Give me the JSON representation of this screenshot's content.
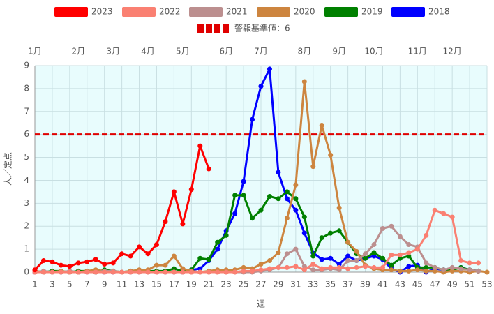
{
  "chart_data": {
    "type": "line",
    "x_label": "週",
    "y_label": "人／定点",
    "x": [
      1,
      2,
      3,
      4,
      5,
      6,
      7,
      8,
      9,
      10,
      11,
      12,
      13,
      14,
      15,
      16,
      17,
      18,
      19,
      20,
      21,
      22,
      23,
      24,
      25,
      26,
      27,
      28,
      29,
      30,
      31,
      32,
      33,
      34,
      35,
      36,
      37,
      38,
      39,
      40,
      41,
      42,
      43,
      44,
      45,
      46,
      47,
      48,
      49,
      50,
      51,
      52,
      53
    ],
    "xlim": [
      1,
      53
    ],
    "xticks": [
      1,
      3,
      5,
      7,
      9,
      11,
      13,
      15,
      17,
      19,
      21,
      23,
      25,
      27,
      29,
      31,
      33,
      35,
      37,
      39,
      41,
      43,
      45,
      47,
      49,
      51,
      53
    ],
    "month_ticks": [
      {
        "value": 1,
        "label": "1月"
      },
      {
        "value": 6,
        "label": "2月"
      },
      {
        "value": 10,
        "label": "3月"
      },
      {
        "value": 14,
        "label": "4月"
      },
      {
        "value": 18,
        "label": "5月"
      },
      {
        "value": 23,
        "label": "6月"
      },
      {
        "value": 27,
        "label": "7月"
      },
      {
        "value": 32,
        "label": "8月"
      },
      {
        "value": 36,
        "label": "9月"
      },
      {
        "value": 40,
        "label": "10月"
      },
      {
        "value": 45,
        "label": "11月"
      },
      {
        "value": 49,
        "label": "12月"
      }
    ],
    "ylim": [
      0,
      9
    ],
    "yticks": [
      0,
      1,
      2,
      3,
      4,
      5,
      6,
      7,
      8,
      9
    ],
    "grid": true,
    "legend": "top",
    "threshold": {
      "value": 6,
      "label": "警報基準値：6",
      "color": "#e00000"
    },
    "series": [
      {
        "name": "2023",
        "color": "#ff0000",
        "values": [
          0.1,
          0.5,
          0.45,
          0.3,
          0.25,
          0.4,
          0.45,
          0.55,
          0.35,
          0.4,
          0.8,
          0.7,
          1.1,
          0.8,
          1.2,
          2.2,
          3.5,
          2.1,
          3.6,
          5.5,
          4.5,
          null,
          null,
          null,
          null,
          null,
          null,
          null,
          null,
          null,
          null,
          null,
          null,
          null,
          null,
          null,
          null,
          null,
          null,
          null,
          null,
          null,
          null,
          null,
          null,
          null,
          null,
          null,
          null,
          null,
          null,
          null,
          null
        ]
      },
      {
        "name": "2022",
        "color": "#fa8072",
        "values": [
          0,
          0,
          0,
          0,
          0,
          0,
          0,
          0,
          0,
          0,
          0,
          0,
          0,
          0,
          0,
          0,
          0,
          0,
          0,
          0,
          0,
          0,
          0,
          0,
          0.05,
          0.05,
          0.1,
          0.15,
          0.2,
          0.2,
          0.25,
          0.1,
          0.35,
          0.15,
          0.2,
          0.2,
          0.15,
          0.2,
          0.25,
          0.2,
          0.2,
          0.75,
          0.75,
          0.85,
          1.0,
          1.6,
          2.7,
          2.55,
          2.4,
          0.5,
          0.4,
          0.4,
          null
        ]
      },
      {
        "name": "2021",
        "color": "#bc8f8f",
        "values": [
          0,
          0.05,
          0,
          0,
          0.05,
          0,
          0,
          0,
          0.05,
          0.05,
          0,
          0,
          0,
          0,
          0,
          0,
          0,
          0,
          0,
          0,
          0,
          0,
          0,
          0,
          0,
          0,
          0.05,
          0.1,
          0.2,
          0.8,
          1.0,
          0.25,
          0.1,
          0.1,
          0.15,
          0.1,
          0.5,
          0.5,
          0.8,
          1.2,
          1.9,
          2.0,
          1.55,
          1.2,
          1.1,
          0.4,
          0.2,
          0.1,
          0.2,
          0.15,
          0.1,
          0.05,
          null
        ]
      },
      {
        "name": "2020",
        "color": "#cd853f",
        "values": [
          0.05,
          0,
          0,
          0.05,
          0,
          0,
          0.05,
          0.1,
          0.05,
          0.05,
          0,
          0.05,
          0.1,
          0.1,
          0.3,
          0.3,
          0.7,
          0.15,
          0.05,
          0,
          0.05,
          0.1,
          0.1,
          0.1,
          0.2,
          0.15,
          0.35,
          0.5,
          0.85,
          2.35,
          3.8,
          8.3,
          4.6,
          6.4,
          5.1,
          2.8,
          1.3,
          0.9,
          0.3,
          0.15,
          0.1,
          0.1,
          0.05,
          0.05,
          0.1,
          0.05,
          0.05,
          0,
          0.05,
          0.05,
          0,
          0.05,
          0
        ]
      },
      {
        "name": "2019",
        "color": "#008000",
        "values": [
          0.05,
          0,
          0.05,
          0.05,
          0,
          0.05,
          0.05,
          0,
          0.1,
          0.05,
          0,
          0.05,
          0.05,
          0.05,
          0.05,
          0.05,
          0.15,
          0.05,
          0.1,
          0.6,
          0.55,
          1.3,
          1.6,
          3.35,
          3.35,
          2.35,
          2.7,
          3.3,
          3.2,
          3.5,
          3.2,
          2.4,
          0.7,
          1.5,
          1.7,
          1.8,
          1.3,
          0.8,
          0.6,
          0.85,
          0.6,
          0.3,
          0.6,
          0.7,
          0.2,
          0.2,
          0.2,
          0.1,
          0.1,
          0.2,
          0.1,
          0.05,
          null
        ]
      },
      {
        "name": "2018",
        "color": "#0000ff",
        "values": [
          0,
          0,
          0,
          0,
          0,
          0,
          0,
          0,
          0,
          0,
          0,
          0,
          0,
          0,
          0,
          0,
          0,
          0,
          0.1,
          0.15,
          0.5,
          1.0,
          1.8,
          2.55,
          3.95,
          6.65,
          8.1,
          8.85,
          4.35,
          3.2,
          2.7,
          1.7,
          0.85,
          0.55,
          0.6,
          0.35,
          0.7,
          0.5,
          0.6,
          0.7,
          0.55,
          0.15,
          0,
          0.25,
          0.3,
          0,
          0.15,
          0.1,
          0.15,
          0.2,
          0.1,
          0.05,
          null
        ]
      }
    ]
  }
}
